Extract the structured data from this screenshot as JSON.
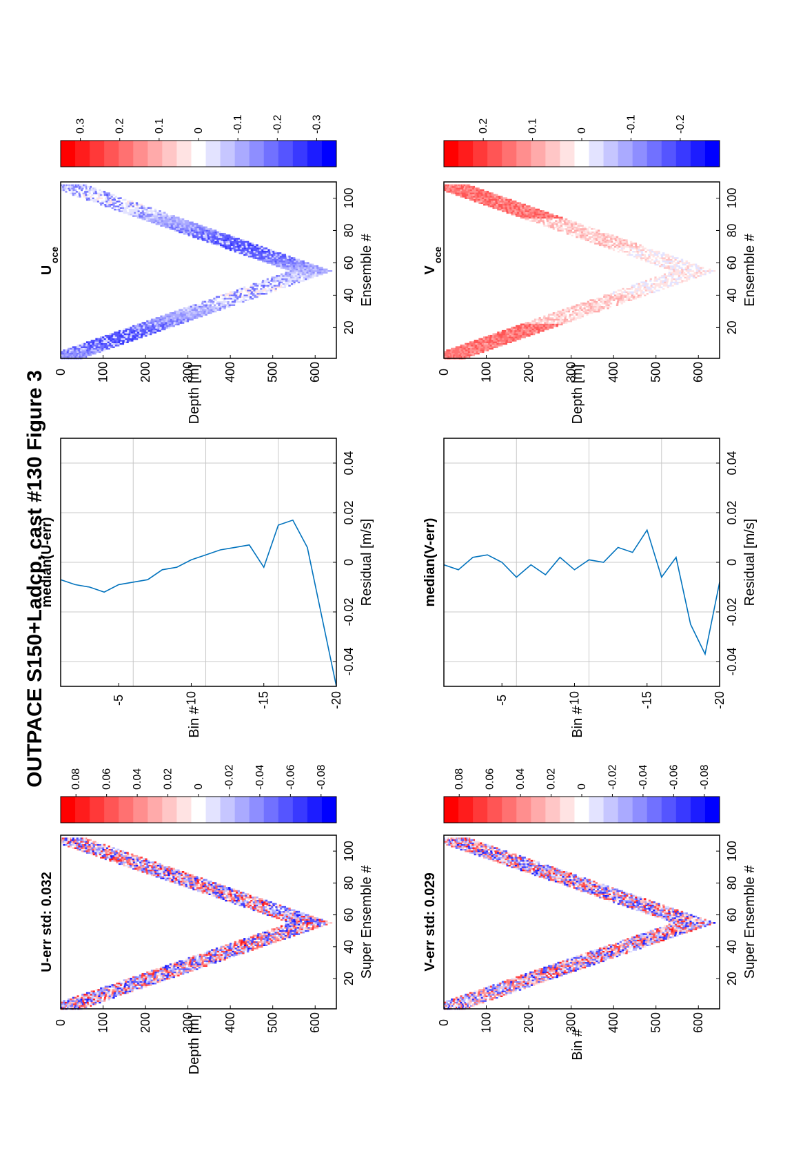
{
  "figure": {
    "title": "OUTPACE S150+Ladcp, cast #130  Figure 3"
  },
  "colors": {
    "axis": "#000000",
    "grid": "#c8c8c8",
    "line": "#0072bd",
    "red": "#ff0000",
    "blue": "#0000ff",
    "white": "#ffffff"
  },
  "chart_data": [
    {
      "id": "u_err",
      "type": "heatmap",
      "title": "U-err std: 0.032",
      "xlabel": "Super Ensemble #",
      "ylabel": "Depth [m]",
      "x_ticks": [
        "20",
        "40",
        "60",
        "80",
        "100"
      ],
      "y_ticks": [
        "0",
        "100",
        "200",
        "300",
        "400",
        "500",
        "600"
      ],
      "xlim": [
        1,
        110
      ],
      "ylim": [
        0,
        650
      ],
      "shape": "V-shaped cast profile, max depth ~620 m near ensemble 55",
      "colorbar": {
        "ticks": [
          "0.08",
          "0.06",
          "0.04",
          "0.02",
          "0",
          "-0.02",
          "-0.04",
          "-0.06",
          "-0.08"
        ],
        "range": [
          -0.09,
          0.09
        ]
      }
    },
    {
      "id": "v_err",
      "type": "heatmap",
      "title": "V-err std: 0.029",
      "xlabel": "Super Ensemble #",
      "ylabel": "Bin #",
      "x_ticks": [
        "20",
        "40",
        "60",
        "80",
        "100"
      ],
      "y_ticks": [
        "0",
        "100",
        "200",
        "300",
        "400",
        "500",
        "600"
      ],
      "xlim": [
        1,
        110
      ],
      "ylim": [
        0,
        650
      ],
      "shape": "V-shaped cast profile, max depth ~620 m near ensemble 55",
      "colorbar": {
        "ticks": [
          "0.08",
          "0.06",
          "0.04",
          "0.02",
          "0",
          "-0.02",
          "-0.04",
          "-0.06",
          "-0.08"
        ],
        "range": [
          -0.09,
          0.09
        ]
      }
    },
    {
      "id": "median_u",
      "type": "line",
      "title": "median(U-err)",
      "xlabel": "Residual [m/s]",
      "ylabel": "Bin #",
      "x_ticks": [
        "-0.04",
        "-0.02",
        "0",
        "0.02",
        "0.04"
      ],
      "y_ticks": [
        "-5",
        "-10",
        "-15",
        "-20"
      ],
      "xlim": [
        -0.05,
        0.05
      ],
      "ylim": [
        -20,
        -1
      ],
      "grid": true,
      "series": [
        {
          "bins": [
            -1,
            -2,
            -3,
            -4,
            -5,
            -6,
            -7,
            -8,
            -9,
            -10,
            -11,
            -12,
            -13,
            -14,
            -15,
            -16,
            -17,
            -18,
            -19,
            -20
          ],
          "values": [
            -0.007,
            -0.009,
            -0.01,
            -0.012,
            -0.009,
            -0.008,
            -0.007,
            -0.003,
            -0.002,
            0.001,
            0.003,
            0.005,
            0.006,
            0.007,
            -0.002,
            0.015,
            0.017,
            0.006,
            -0.022,
            -0.05
          ]
        }
      ]
    },
    {
      "id": "median_v",
      "type": "line",
      "title": "median(V-err)",
      "xlabel": "Residual [m/s]",
      "ylabel": "Bin #",
      "x_ticks": [
        "-0.04",
        "-0.02",
        "0",
        "0.02",
        "0.04"
      ],
      "y_ticks": [
        "-5",
        "-10",
        "-15",
        "-20"
      ],
      "xlim": [
        -0.05,
        0.05
      ],
      "ylim": [
        -20,
        -1
      ],
      "grid": true,
      "series": [
        {
          "bins": [
            -1,
            -2,
            -3,
            -4,
            -5,
            -6,
            -7,
            -8,
            -9,
            -10,
            -11,
            -12,
            -13,
            -14,
            -15,
            -16,
            -17,
            -18,
            -19,
            -20
          ],
          "values": [
            -0.001,
            -0.003,
            0.002,
            0.003,
            0.0,
            -0.006,
            -0.001,
            -0.005,
            0.002,
            -0.003,
            0.001,
            0.0,
            0.006,
            0.004,
            0.013,
            -0.006,
            0.002,
            -0.025,
            -0.037,
            -0.008
          ]
        }
      ]
    },
    {
      "id": "u_oce",
      "type": "heatmap",
      "title": "U",
      "title_sub": "oce",
      "xlabel": "Ensemble #",
      "ylabel": "Depth [m]",
      "x_ticks": [
        "20",
        "40",
        "60",
        "80",
        "100"
      ],
      "y_ticks": [
        "0",
        "100",
        "200",
        "300",
        "400",
        "500",
        "600"
      ],
      "xlim": [
        1,
        110
      ],
      "ylim": [
        0,
        650
      ],
      "shape": "V-shaped cast profile, mostly negative (blue)",
      "colorbar": {
        "ticks": [
          "0.3",
          "0.2",
          "0.1",
          "0",
          "-0.1",
          "-0.2",
          "-0.3"
        ],
        "range": [
          -0.35,
          0.35
        ]
      }
    },
    {
      "id": "v_oce",
      "type": "heatmap",
      "title": "V",
      "title_sub": "oce",
      "xlabel": "Ensemble #",
      "ylabel": "Depth [m]",
      "x_ticks": [
        "20",
        "40",
        "60",
        "80",
        "100"
      ],
      "y_ticks": [
        "0",
        "100",
        "200",
        "300",
        "400",
        "500",
        "600"
      ],
      "xlim": [
        1,
        110
      ],
      "ylim": [
        0,
        650
      ],
      "shape": "V-shaped cast profile, mostly positive (red) near surface",
      "colorbar": {
        "ticks": [
          "0.2",
          "0.1",
          "0",
          "-0.1",
          "-0.2"
        ],
        "range": [
          -0.28,
          0.28
        ]
      }
    }
  ]
}
